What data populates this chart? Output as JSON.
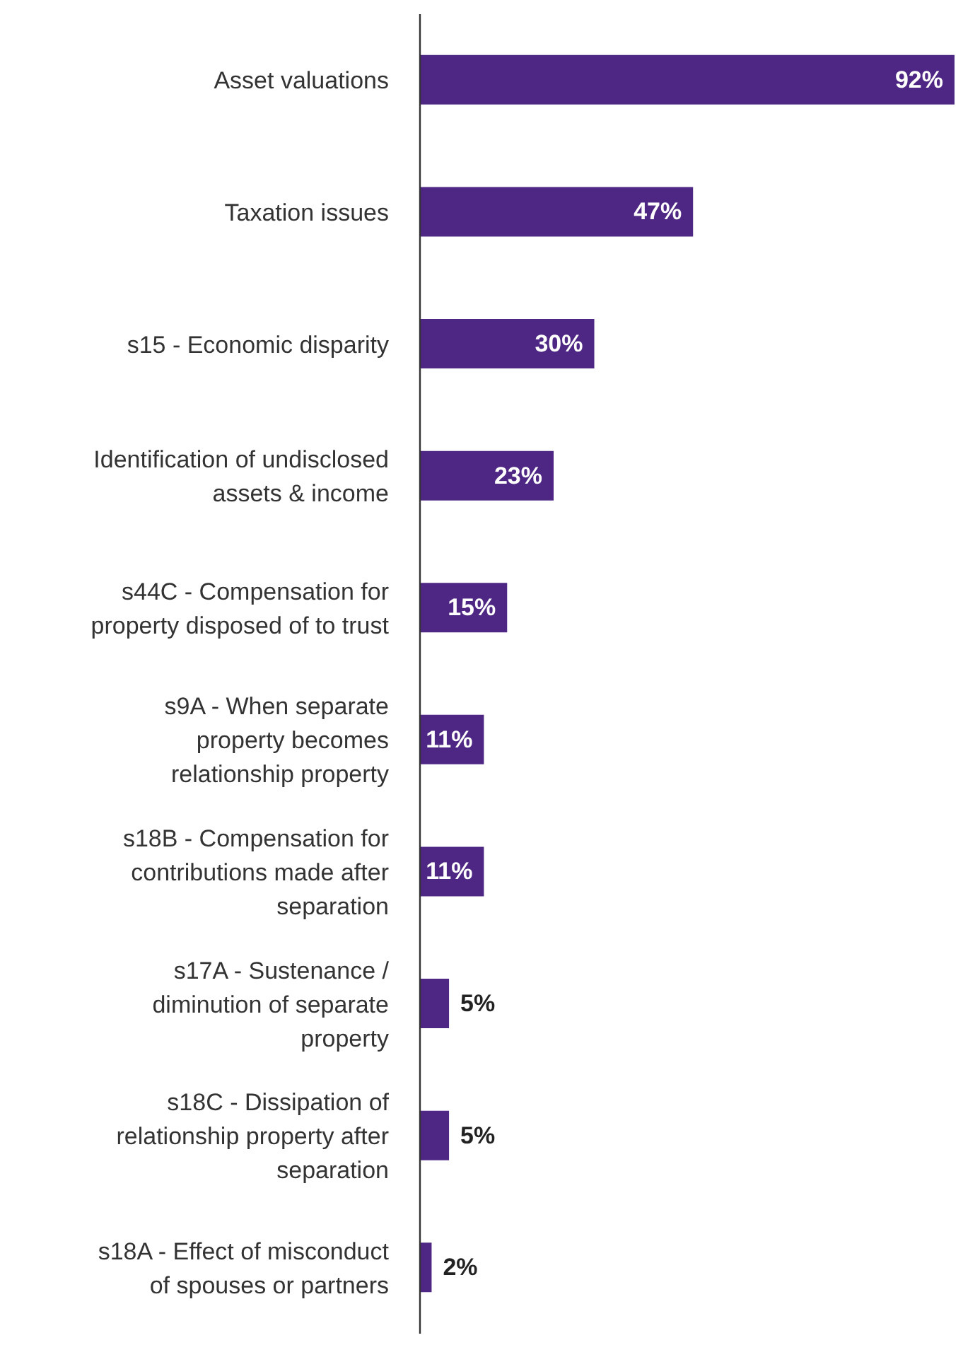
{
  "chart_data": {
    "type": "bar",
    "orientation": "horizontal",
    "categories": [
      "Asset valuations",
      "Taxation issues",
      "s15 - Economic disparity",
      "Identification of undisclosed assets & income",
      "s44C - Compensation for property disposed of to trust",
      "s9A - When separate property becomes relationship property",
      "s18B - Compensation for contributions made after separation",
      "s17A - Sustenance / diminution of separate property",
      "s18C - Dissipation of relationship property after separation",
      "s18A - Effect of misconduct of spouses or partners"
    ],
    "values": [
      92,
      47,
      30,
      23,
      15,
      11,
      11,
      5,
      5,
      2
    ],
    "value_labels": [
      "92%",
      "47%",
      "30%",
      "23%",
      "15%",
      "11%",
      "11%",
      "5%",
      "5%",
      "2%"
    ],
    "color": "#4e2683"
  }
}
